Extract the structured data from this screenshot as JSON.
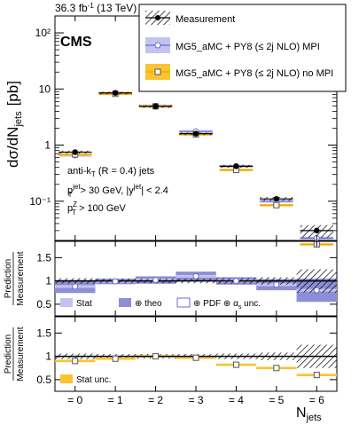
{
  "header": {
    "lumi": "36.3 fb",
    "lumi_sup": "-1",
    "energy": " (13 TeV)"
  },
  "experiment": "CMS",
  "legend": {
    "measurement": "Measurement",
    "mpi": "MG5_aMC + PY8 (≤ 2j NLO) MPI",
    "nompi": "MG5_aMC + PY8 (≤ 2j NLO) no MPI"
  },
  "annotations": {
    "algo_pre": "anti-k",
    "algo_sub": "T",
    "algo_post": " (R = 0.4) jets",
    "cut1": "p",
    "cut1_sup": "jet",
    "cut1_sub": "T",
    "cut1_mid": " > 30 GeV, |y",
    "cut1_sup2": "jet",
    "cut1_end": "| < 2.4",
    "cut2": "p",
    "cut2_sup": "Z",
    "cut2_sub": "T",
    "cut2_end": " >  100 GeV"
  },
  "ratio_legend_1": {
    "stat": "Stat",
    "theo": "⊕ theo",
    "pdf_pre": "⊕ PDF ⊕ α",
    "pdf_sub": "s",
    "pdf_post": " unc."
  },
  "ratio_legend_2": {
    "stat": "Stat unc."
  },
  "colors": {
    "mpi": "#6b6bd1",
    "mpi_band_dark": "#8e8ed6",
    "mpi_band_light": "#c3c3f0",
    "nompi": "#f2a500",
    "nompi_band": "#fcc330"
  },
  "chart_data": [
    {
      "type": "line",
      "ylabel": "dσ/dN",
      "ylabel_sub": "jets",
      "ylabel_unit": "[pb]",
      "yscale": "log",
      "ylim": [
        0.02,
        200
      ],
      "ytick_labels": [
        "10²",
        "10",
        "1",
        "10⁻¹"
      ],
      "ytick_values": [
        100,
        10,
        1,
        0.1
      ],
      "categories": [
        "= 0",
        "= 1",
        "= 2",
        "= 3",
        "= 4",
        "= 5",
        "= 6"
      ],
      "series": [
        {
          "name": "Measurement",
          "values": [
            0.75,
            8.5,
            4.9,
            1.6,
            0.42,
            0.11,
            0.03
          ]
        },
        {
          "name": "MG5_aMC + PY8 (≤ 2j NLO) MPI",
          "values": [
            0.66,
            8.4,
            5.0,
            1.75,
            0.42,
            0.1,
            0.022
          ]
        },
        {
          "name": "MG5_aMC + PY8 (≤ 2j NLO) no MPI",
          "values": [
            0.68,
            8.2,
            4.9,
            1.55,
            0.36,
            0.085,
            0.017
          ]
        }
      ]
    },
    {
      "type": "line",
      "ylabel_top": "Prediction",
      "ylabel_bottom": "Measurement",
      "ylim": [
        0.25,
        1.85
      ],
      "ytick_labels": [
        "0.5",
        "1",
        "1.5"
      ],
      "ytick_values": [
        0.5,
        1,
        1.5
      ],
      "series": [
        {
          "name": "MG5_aMC + PY8 (≤ 2j NLO) MPI",
          "values": [
            0.88,
            0.99,
            1.02,
            1.1,
            1.0,
            0.92,
            0.8
          ]
        }
      ]
    },
    {
      "type": "line",
      "ylabel_top": "Prediction",
      "ylabel_bottom": "Measurement",
      "ylim": [
        0.25,
        1.85
      ],
      "ytick_labels": [
        "0.5",
        "1",
        "1.5"
      ],
      "ytick_values": [
        0.5,
        1,
        1.5
      ],
      "xlabel": "N",
      "xlabel_sub": "jets",
      "series": [
        {
          "name": "MG5_aMC + PY8 (≤ 2j NLO) no MPI",
          "values": [
            0.9,
            0.95,
            1.0,
            0.97,
            0.82,
            0.75,
            0.6
          ]
        }
      ]
    }
  ]
}
